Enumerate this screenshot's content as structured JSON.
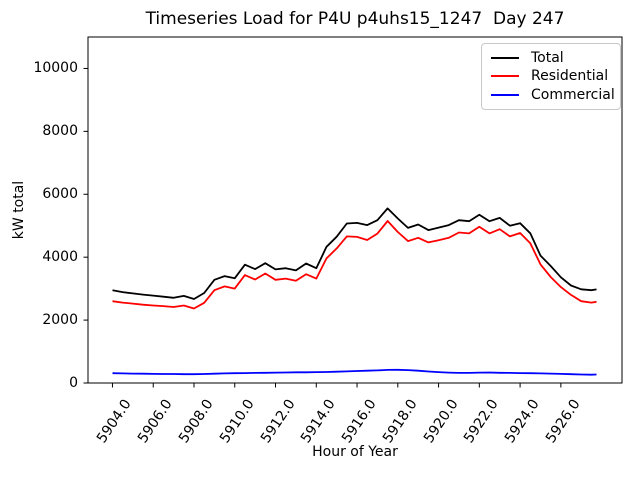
{
  "chart_data": {
    "type": "line",
    "title": "Timeseries Load for P4U p4uhs15_1247  Day 247",
    "xlabel": "Hour of Year",
    "ylabel": "kW total",
    "xlim": [
      5902.8,
      5929.0
    ],
    "ylim": [
      0,
      11000
    ],
    "grid": false,
    "legend_position": "upper right",
    "xticks": [
      5904.0,
      5906.0,
      5908.0,
      5910.0,
      5912.0,
      5914.0,
      5916.0,
      5918.0,
      5920.0,
      5922.0,
      5924.0,
      5926.0
    ],
    "xtick_labels": [
      "5904.0",
      "5906.0",
      "5908.0",
      "5910.0",
      "5912.0",
      "5914.0",
      "5916.0",
      "5918.0",
      "5920.0",
      "5922.0",
      "5924.0",
      "5926.0"
    ],
    "yticks": [
      0,
      2000,
      4000,
      6000,
      8000,
      10000
    ],
    "ytick_labels": [
      "0",
      "2000",
      "4000",
      "6000",
      "8000",
      "10000"
    ],
    "x": [
      5904.0,
      5904.5,
      5905.0,
      5905.5,
      5906.0,
      5906.5,
      5907.0,
      5907.5,
      5908.0,
      5908.5,
      5909.0,
      5909.5,
      5910.0,
      5910.5,
      5911.0,
      5911.5,
      5912.0,
      5912.5,
      5913.0,
      5913.5,
      5914.0,
      5914.5,
      5915.0,
      5915.5,
      5916.0,
      5916.5,
      5917.0,
      5917.5,
      5918.0,
      5918.5,
      5919.0,
      5919.5,
      5920.0,
      5920.5,
      5921.0,
      5921.5,
      5922.0,
      5922.5,
      5923.0,
      5923.5,
      5924.0,
      5924.5,
      5925.0,
      5925.5,
      5926.0,
      5926.5,
      5927.0,
      5927.5,
      5927.75
    ],
    "series": [
      {
        "name": "Total",
        "color": "#000000",
        "values": [
          2950,
          2890,
          2850,
          2810,
          2780,
          2745,
          2710,
          2770,
          2670,
          2860,
          3280,
          3400,
          3330,
          3760,
          3620,
          3810,
          3610,
          3650,
          3580,
          3800,
          3650,
          4330,
          4650,
          5070,
          5090,
          5020,
          5175,
          5550,
          5230,
          4930,
          5040,
          4860,
          4940,
          5020,
          5175,
          5145,
          5350,
          5145,
          5250,
          5000,
          5080,
          4760,
          4050,
          3720,
          3360,
          3100,
          2980,
          2950,
          2975
        ]
      },
      {
        "name": "Residential",
        "color": "#ff0000",
        "values": [
          2600,
          2555,
          2525,
          2490,
          2465,
          2445,
          2415,
          2465,
          2370,
          2550,
          2950,
          3070,
          3000,
          3430,
          3290,
          3480,
          3280,
          3320,
          3250,
          3460,
          3320,
          3960,
          4280,
          4660,
          4645,
          4545,
          4750,
          5150,
          4800,
          4510,
          4615,
          4470,
          4540,
          4615,
          4785,
          4755,
          4965,
          4755,
          4890,
          4660,
          4770,
          4440,
          3770,
          3370,
          3050,
          2800,
          2600,
          2555,
          2580
        ]
      },
      {
        "name": "Commercial",
        "color": "#0000ff",
        "values": [
          310,
          305,
          300,
          295,
          290,
          285,
          285,
          280,
          280,
          285,
          295,
          305,
          310,
          315,
          320,
          325,
          330,
          335,
          340,
          340,
          345,
          350,
          360,
          370,
          380,
          390,
          400,
          415,
          420,
          410,
          390,
          365,
          345,
          330,
          320,
          320,
          330,
          335,
          325,
          320,
          315,
          310,
          305,
          300,
          290,
          280,
          270,
          265,
          270
        ]
      }
    ]
  }
}
